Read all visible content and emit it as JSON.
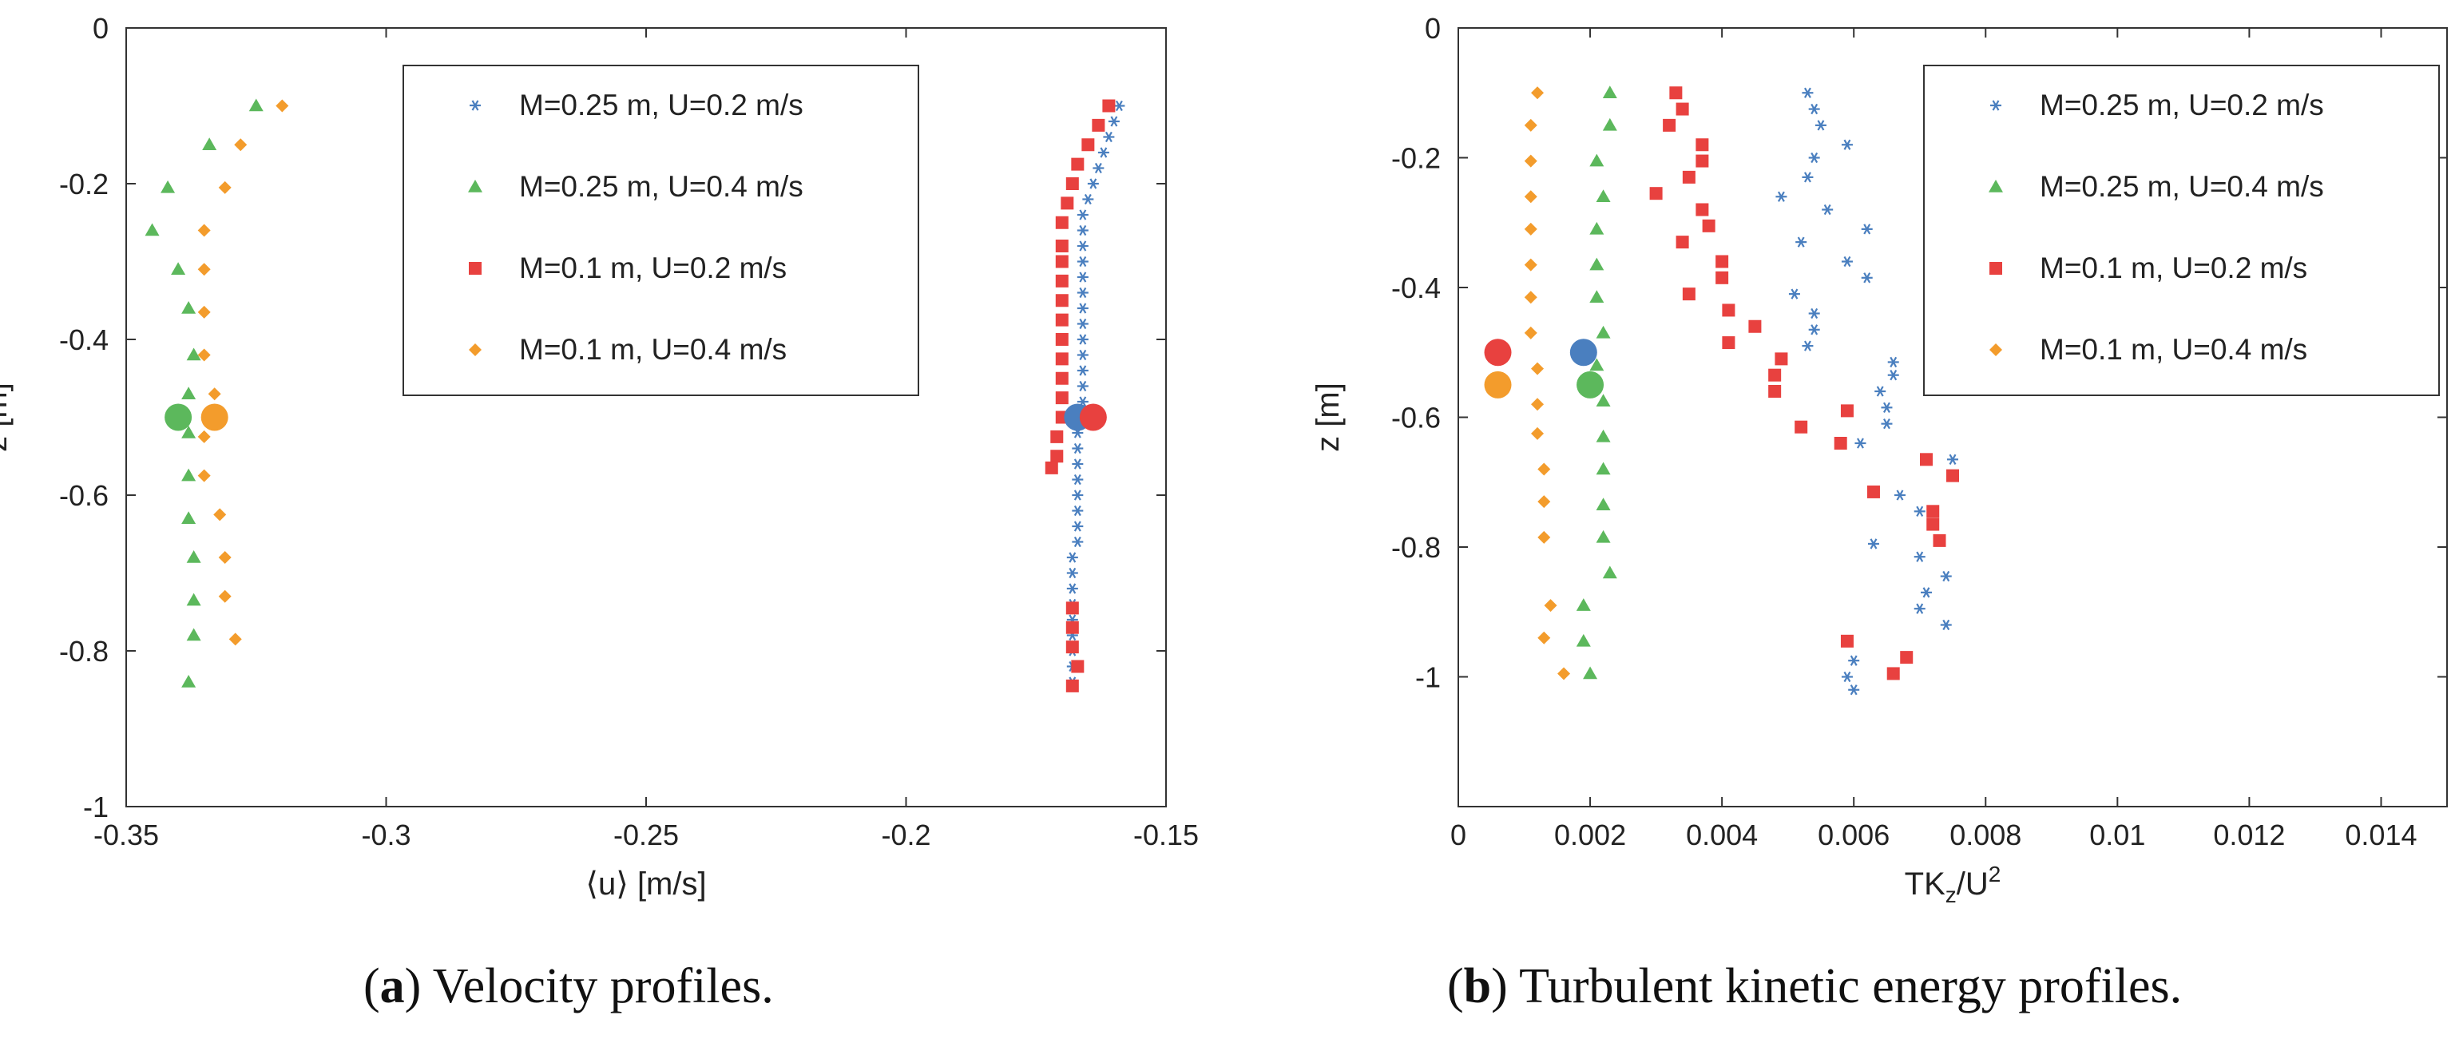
{
  "colors": {
    "s1": "#4a7fbf",
    "s2": "#5cb85c",
    "s3": "#e8413f",
    "s4": "#f39c2c"
  },
  "captions": [
    {
      "letter": "a",
      "text": "Velocity profiles."
    },
    {
      "letter": "b",
      "text": "Turbulent kinetic energy profiles."
    }
  ],
  "chart_data": [
    {
      "type": "scatter",
      "title": "",
      "xlabel": "⟨u⟩ [m/s]",
      "ylabel": "z [m]",
      "xlim": [
        -0.35,
        -0.15
      ],
      "ylim": [
        -1,
        0
      ],
      "xticks": [
        -0.35,
        -0.3,
        -0.25,
        -0.2,
        -0.15
      ],
      "xtick_labels": [
        "-0.35",
        "-0.3",
        "-0.25",
        "-0.2",
        "-0.15"
      ],
      "yticks": [
        0,
        -0.2,
        -0.4,
        -0.6,
        -0.8,
        -1
      ],
      "ytick_labels": [
        "0",
        "-0.2",
        "-0.4",
        "-0.6",
        "-0.8",
        "-1"
      ],
      "legend": {
        "location": "top-right",
        "entries": [
          "M=0.25 m, U=0.2 m/s",
          "M=0.25 m, U=0.4 m/s",
          "M=0.1 m, U=0.2 m/s",
          "M=0.1 m, U=0.4 m/s"
        ]
      },
      "series": [
        {
          "name": "M=0.25 m, U=0.2 m/s",
          "marker": "star",
          "color": "#4a7fbf",
          "points": [
            [
              -0.159,
              -0.1
            ],
            [
              -0.16,
              -0.12
            ],
            [
              -0.161,
              -0.14
            ],
            [
              -0.162,
              -0.16
            ],
            [
              -0.163,
              -0.18
            ],
            [
              -0.164,
              -0.2
            ],
            [
              -0.165,
              -0.22
            ],
            [
              -0.166,
              -0.24
            ],
            [
              -0.166,
              -0.26
            ],
            [
              -0.166,
              -0.28
            ],
            [
              -0.166,
              -0.3
            ],
            [
              -0.166,
              -0.32
            ],
            [
              -0.166,
              -0.34
            ],
            [
              -0.166,
              -0.36
            ],
            [
              -0.166,
              -0.38
            ],
            [
              -0.166,
              -0.4
            ],
            [
              -0.166,
              -0.42
            ],
            [
              -0.166,
              -0.44
            ],
            [
              -0.166,
              -0.46
            ],
            [
              -0.166,
              -0.48
            ],
            [
              -0.167,
              -0.5
            ],
            [
              -0.167,
              -0.52
            ],
            [
              -0.167,
              -0.54
            ],
            [
              -0.167,
              -0.56
            ],
            [
              -0.167,
              -0.58
            ],
            [
              -0.167,
              -0.6
            ],
            [
              -0.167,
              -0.62
            ],
            [
              -0.167,
              -0.64
            ],
            [
              -0.167,
              -0.66
            ],
            [
              -0.168,
              -0.68
            ],
            [
              -0.168,
              -0.7
            ],
            [
              -0.168,
              -0.72
            ],
            [
              -0.168,
              -0.74
            ],
            [
              -0.168,
              -0.76
            ],
            [
              -0.168,
              -0.78
            ],
            [
              -0.168,
              -0.8
            ],
            [
              -0.168,
              -0.82
            ],
            [
              -0.168,
              -0.84
            ]
          ],
          "mean": [
            -0.167,
            -0.5
          ]
        },
        {
          "name": "M=0.25 m, U=0.4 m/s",
          "marker": "triangle",
          "color": "#5cb85c",
          "points": [
            [
              -0.325,
              -0.1
            ],
            [
              -0.334,
              -0.15
            ],
            [
              -0.342,
              -0.205
            ],
            [
              -0.345,
              -0.26
            ],
            [
              -0.34,
              -0.31
            ],
            [
              -0.338,
              -0.36
            ],
            [
              -0.337,
              -0.42
            ],
            [
              -0.338,
              -0.47
            ],
            [
              -0.338,
              -0.52
            ],
            [
              -0.338,
              -0.575
            ],
            [
              -0.338,
              -0.63
            ],
            [
              -0.337,
              -0.68
            ],
            [
              -0.337,
              -0.735
            ],
            [
              -0.337,
              -0.78
            ],
            [
              -0.338,
              -0.84
            ]
          ],
          "mean": [
            -0.34,
            -0.5
          ]
        },
        {
          "name": "M=0.1 m, U=0.2 m/s",
          "marker": "square",
          "color": "#e8413f",
          "points": [
            [
              -0.161,
              -0.1
            ],
            [
              -0.163,
              -0.125
            ],
            [
              -0.165,
              -0.15
            ],
            [
              -0.167,
              -0.175
            ],
            [
              -0.168,
              -0.2
            ],
            [
              -0.169,
              -0.225
            ],
            [
              -0.17,
              -0.25
            ],
            [
              -0.17,
              -0.28
            ],
            [
              -0.17,
              -0.3
            ],
            [
              -0.17,
              -0.325
            ],
            [
              -0.17,
              -0.35
            ],
            [
              -0.17,
              -0.375
            ],
            [
              -0.17,
              -0.4
            ],
            [
              -0.17,
              -0.425
            ],
            [
              -0.17,
              -0.45
            ],
            [
              -0.17,
              -0.475
            ],
            [
              -0.17,
              -0.5
            ],
            [
              -0.171,
              -0.525
            ],
            [
              -0.171,
              -0.55
            ],
            [
              -0.172,
              -0.565
            ],
            [
              -0.168,
              -0.745
            ],
            [
              -0.168,
              -0.77
            ],
            [
              -0.168,
              -0.795
            ],
            [
              -0.167,
              -0.82
            ],
            [
              -0.168,
              -0.845
            ]
          ],
          "mean": [
            -0.164,
            -0.5
          ]
        },
        {
          "name": "M=0.1 m, U=0.4 m/s",
          "marker": "diamond",
          "color": "#f39c2c",
          "points": [
            [
              -0.32,
              -0.1
            ],
            [
              -0.328,
              -0.15
            ],
            [
              -0.331,
              -0.205
            ],
            [
              -0.335,
              -0.26
            ],
            [
              -0.335,
              -0.31
            ],
            [
              -0.335,
              -0.365
            ],
            [
              -0.335,
              -0.42
            ],
            [
              -0.333,
              -0.47
            ],
            [
              -0.335,
              -0.525
            ],
            [
              -0.335,
              -0.575
            ],
            [
              -0.332,
              -0.625
            ],
            [
              -0.331,
              -0.68
            ],
            [
              -0.331,
              -0.73
            ],
            [
              -0.329,
              -0.785
            ]
          ],
          "mean": [
            -0.333,
            -0.5
          ]
        }
      ]
    },
    {
      "type": "scatter",
      "title": "",
      "xlabel": "TK",
      "xlabel_sub": "z",
      "xlabel_mid": "/U",
      "xlabel_sup": "2",
      "ylabel": "z [m]",
      "xlim": [
        0,
        0.015
      ],
      "ylim": [
        -1.2,
        0
      ],
      "xticks": [
        0,
        0.002,
        0.004,
        0.006,
        0.008,
        0.01,
        0.012,
        0.014
      ],
      "xtick_labels": [
        "0",
        "0.002",
        "0.004",
        "0.006",
        "0.008",
        "0.01",
        "0.012",
        "0.014"
      ],
      "yticks": [
        0,
        -0.2,
        -0.4,
        -0.6,
        -0.8,
        -1
      ],
      "ytick_labels": [
        "0",
        "-0.2",
        "-0.4",
        "-0.6",
        "-0.8",
        "-1"
      ],
      "legend": {
        "location": "top-right",
        "entries": [
          "M=0.25 m, U=0.2 m/s",
          "M=0.25 m, U=0.4 m/s",
          "M=0.1 m, U=0.2 m/s",
          "M=0.1 m, U=0.4 m/s"
        ]
      },
      "series": [
        {
          "name": "M=0.25 m, U=0.2 m/s",
          "marker": "star",
          "color": "#4a7fbf",
          "points": [
            [
              0.0053,
              -0.1
            ],
            [
              0.0054,
              -0.125
            ],
            [
              0.0055,
              -0.15
            ],
            [
              0.0054,
              -0.2
            ],
            [
              0.0059,
              -0.18
            ],
            [
              0.0053,
              -0.23
            ],
            [
              0.0056,
              -0.28
            ],
            [
              0.0049,
              -0.26
            ],
            [
              0.0062,
              -0.31
            ],
            [
              0.0052,
              -0.33
            ],
            [
              0.0059,
              -0.36
            ],
            [
              0.0062,
              -0.385
            ],
            [
              0.0051,
              -0.41
            ],
            [
              0.0054,
              -0.44
            ],
            [
              0.0054,
              -0.465
            ],
            [
              0.0053,
              -0.49
            ],
            [
              0.0066,
              -0.515
            ],
            [
              0.0066,
              -0.535
            ],
            [
              0.0064,
              -0.56
            ],
            [
              0.0065,
              -0.585
            ],
            [
              0.0065,
              -0.61
            ],
            [
              0.0061,
              -0.64
            ],
            [
              0.0075,
              -0.665
            ],
            [
              0.0067,
              -0.72
            ],
            [
              0.007,
              -0.745
            ],
            [
              0.0063,
              -0.795
            ],
            [
              0.007,
              -0.815
            ],
            [
              0.0074,
              -0.845
            ],
            [
              0.0071,
              -0.87
            ],
            [
              0.007,
              -0.895
            ],
            [
              0.0074,
              -0.92
            ],
            [
              0.006,
              -0.975
            ],
            [
              0.0059,
              -1.0
            ],
            [
              0.006,
              -1.02
            ]
          ],
          "mean": [
            0.0019,
            -0.5
          ]
        },
        {
          "name": "M=0.25 m, U=0.4 m/s",
          "marker": "triangle",
          "color": "#5cb85c",
          "points": [
            [
              0.0023,
              -0.1
            ],
            [
              0.0023,
              -0.15
            ],
            [
              0.0021,
              -0.205
            ],
            [
              0.0022,
              -0.26
            ],
            [
              0.0021,
              -0.31
            ],
            [
              0.0021,
              -0.365
            ],
            [
              0.0021,
              -0.415
            ],
            [
              0.0022,
              -0.47
            ],
            [
              0.0021,
              -0.52
            ],
            [
              0.0022,
              -0.575
            ],
            [
              0.0022,
              -0.63
            ],
            [
              0.0022,
              -0.68
            ],
            [
              0.0022,
              -0.735
            ],
            [
              0.0022,
              -0.785
            ],
            [
              0.0023,
              -0.84
            ],
            [
              0.0019,
              -0.89
            ],
            [
              0.0019,
              -0.945
            ],
            [
              0.002,
              -0.995
            ]
          ],
          "mean": [
            0.002,
            -0.55
          ]
        },
        {
          "name": "M=0.1 m, U=0.2 m/s",
          "marker": "square",
          "color": "#e8413f",
          "points": [
            [
              0.0033,
              -0.1
            ],
            [
              0.0034,
              -0.125
            ],
            [
              0.0032,
              -0.15
            ],
            [
              0.0037,
              -0.18
            ],
            [
              0.0037,
              -0.205
            ],
            [
              0.0035,
              -0.23
            ],
            [
              0.003,
              -0.255
            ],
            [
              0.0037,
              -0.28
            ],
            [
              0.0038,
              -0.305
            ],
            [
              0.0034,
              -0.33
            ],
            [
              0.004,
              -0.36
            ],
            [
              0.004,
              -0.385
            ],
            [
              0.0035,
              -0.41
            ],
            [
              0.0041,
              -0.435
            ],
            [
              0.0045,
              -0.46
            ],
            [
              0.0041,
              -0.485
            ],
            [
              0.0049,
              -0.51
            ],
            [
              0.0048,
              -0.535
            ],
            [
              0.0048,
              -0.56
            ],
            [
              0.0059,
              -0.59
            ],
            [
              0.0052,
              -0.615
            ],
            [
              0.0058,
              -0.64
            ],
            [
              0.0071,
              -0.665
            ],
            [
              0.0075,
              -0.69
            ],
            [
              0.0063,
              -0.715
            ],
            [
              0.0072,
              -0.745
            ],
            [
              0.0072,
              -0.765
            ],
            [
              0.0073,
              -0.79
            ],
            [
              0.0059,
              -0.945
            ],
            [
              0.0068,
              -0.97
            ],
            [
              0.0066,
              -0.995
            ]
          ],
          "mean": [
            0.0006,
            -0.5
          ]
        },
        {
          "name": "M=0.1 m, U=0.4 m/s",
          "marker": "diamond",
          "color": "#f39c2c",
          "points": [
            [
              0.0012,
              -0.1
            ],
            [
              0.0011,
              -0.15
            ],
            [
              0.0011,
              -0.205
            ],
            [
              0.0011,
              -0.26
            ],
            [
              0.0011,
              -0.31
            ],
            [
              0.0011,
              -0.365
            ],
            [
              0.0011,
              -0.415
            ],
            [
              0.0011,
              -0.47
            ],
            [
              0.0012,
              -0.525
            ],
            [
              0.0012,
              -0.58
            ],
            [
              0.0012,
              -0.625
            ],
            [
              0.0013,
              -0.68
            ],
            [
              0.0013,
              -0.73
            ],
            [
              0.0013,
              -0.785
            ],
            [
              0.0014,
              -0.89
            ],
            [
              0.0013,
              -0.94
            ],
            [
              0.0016,
              -0.995
            ]
          ],
          "mean": [
            0.0006,
            -0.55
          ]
        }
      ]
    }
  ]
}
